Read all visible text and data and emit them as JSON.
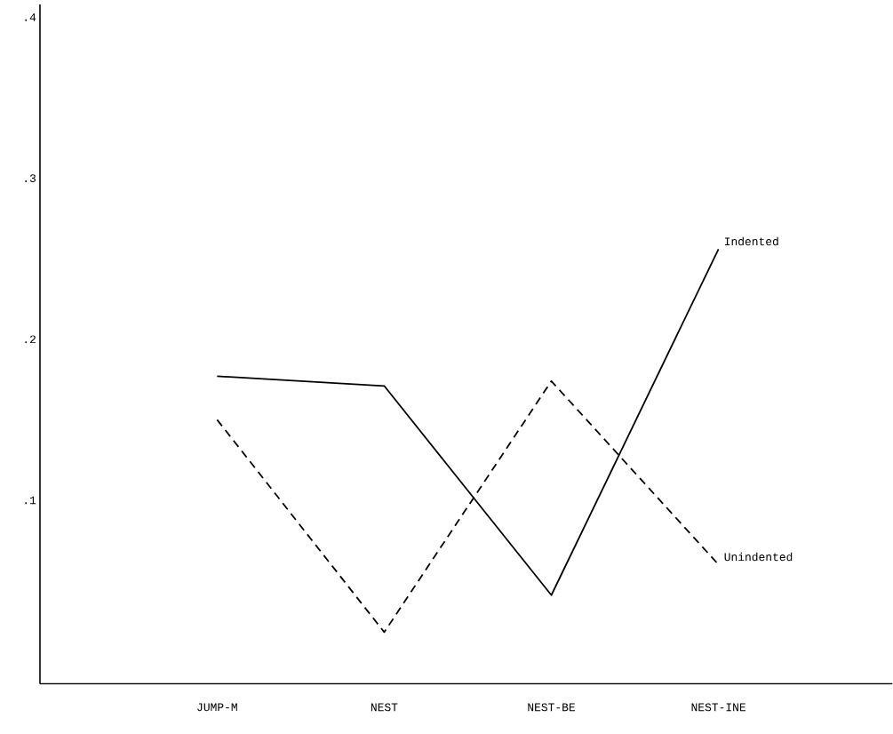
{
  "chart_data": {
    "type": "line",
    "categories": [
      "JUMP-M",
      "NEST",
      "NEST-BE",
      "NEST-INE"
    ],
    "series": [
      {
        "name": "Indented",
        "color": "#000000",
        "line_style": "solid",
        "values": [
          0.177,
          0.171,
          0.041,
          0.256
        ]
      },
      {
        "name": "Unindented",
        "color": "#000000",
        "line_style": "dashed",
        "values": [
          0.15,
          0.018,
          0.174,
          0.06
        ]
      }
    ],
    "ylim": [
      -0.014,
      0.408
    ],
    "yticks": [
      {
        "value": 0.1,
        "label": ".1"
      },
      {
        "value": 0.2,
        "label": ".2"
      },
      {
        "value": 0.3,
        "label": ".3"
      },
      {
        "value": 0.4,
        "label": ".4"
      }
    ],
    "grid": false,
    "marker": "none"
  }
}
